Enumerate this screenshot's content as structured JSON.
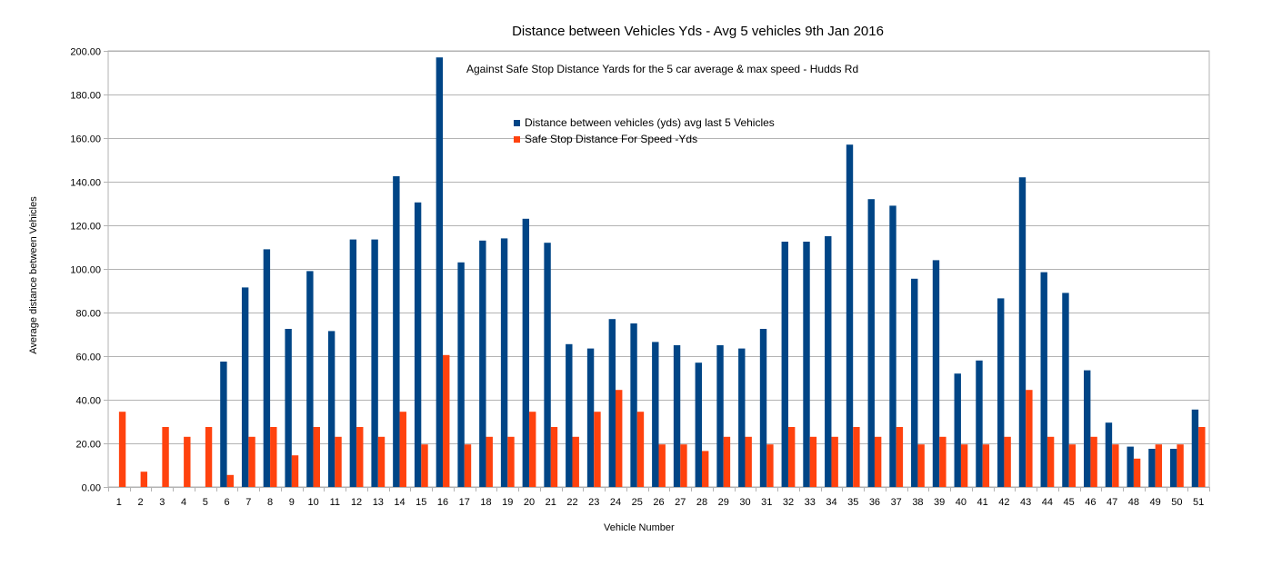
{
  "colors": {
    "series1": "#004586",
    "series2": "#ff420e",
    "grid": "#b3b3b3",
    "axis": "#b3b3b3"
  },
  "chart_data": {
    "type": "bar",
    "title": "Distance between Vehicles Yds  -  Avg 5 vehicles 9th Jan 2016",
    "subtitle": "Against Safe Stop Distance Yards for the 5 car average & max speed - Hudds Rd",
    "xlabel": "Vehicle Number",
    "ylabel": "Average distance between Vehicles",
    "ylim": [
      0,
      200
    ],
    "ystep": 20,
    "ytick_labels": [
      "0.00",
      "20.00",
      "40.00",
      "60.00",
      "80.00",
      "100.00",
      "120.00",
      "140.00",
      "160.00",
      "180.00",
      "200.00"
    ],
    "grid": true,
    "legend_position": "top-center",
    "categories": [
      "1",
      "2",
      "3",
      "4",
      "5",
      "6",
      "7",
      "8",
      "9",
      "10",
      "11",
      "12",
      "13",
      "14",
      "15",
      "16",
      "17",
      "18",
      "19",
      "20",
      "21",
      "22",
      "23",
      "24",
      "25",
      "26",
      "27",
      "28",
      "29",
      "30",
      "31",
      "32",
      "33",
      "34",
      "35",
      "36",
      "37",
      "38",
      "39",
      "40",
      "41",
      "42",
      "43",
      "44",
      "45",
      "46",
      "47",
      "48",
      "49",
      "50",
      "51"
    ],
    "series": [
      {
        "name": "Distance between vehicles (yds) avg last 5 Vehicles",
        "values": [
          null,
          null,
          null,
          null,
          null,
          57.5,
          91.5,
          109,
          72.5,
          99,
          71.5,
          113.5,
          113.5,
          142.5,
          130.5,
          197,
          103,
          113,
          114,
          123,
          112,
          65.5,
          63.5,
          77,
          75,
          66.5,
          65,
          57,
          65,
          63.5,
          72.5,
          112.5,
          112.5,
          115,
          157,
          132,
          129,
          95.5,
          104,
          52,
          58,
          86.5,
          142,
          98.5,
          89,
          53.5,
          29.5,
          18.5,
          17.5,
          17.5,
          35.5
        ]
      },
      {
        "name": "Safe Stop Distance For Speed -Yds",
        "values": [
          34.5,
          7,
          27.5,
          23,
          27.5,
          5.5,
          23,
          27.5,
          14.5,
          27.5,
          23,
          27.5,
          23,
          34.5,
          19.5,
          60.5,
          19.5,
          23,
          23,
          34.5,
          27.5,
          23,
          34.5,
          44.5,
          34.5,
          19.5,
          19.5,
          16.5,
          23,
          23,
          19.5,
          27.5,
          23,
          23,
          27.5,
          23,
          27.5,
          19.5,
          23,
          19.5,
          19.5,
          23,
          44.5,
          23,
          19.5,
          23,
          19.5,
          13,
          19.5,
          19.5,
          27.5
        ]
      }
    ]
  }
}
